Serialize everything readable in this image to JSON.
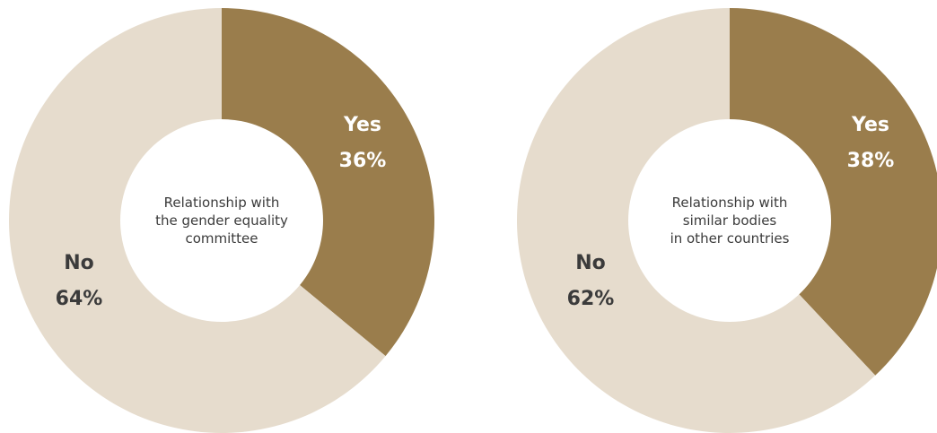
{
  "chart_data": [
    {
      "type": "pie",
      "variant": "donut",
      "center_label": [
        "Relationship with",
        "the gender equality",
        "committee"
      ],
      "slices": [
        {
          "label": "Yes",
          "value": 36,
          "value_label": "36%",
          "color": "#9a7d4c",
          "label_color": "#ffffff"
        },
        {
          "label": "No",
          "value": 64,
          "value_label": "64%",
          "color": "#e6dccd",
          "label_color": "#3b3b3b"
        }
      ]
    },
    {
      "type": "pie",
      "variant": "donut",
      "center_label": [
        "Relationship with",
        "similar bodies",
        "in other countries"
      ],
      "slices": [
        {
          "label": "Yes",
          "value": 38,
          "value_label": "38%",
          "color": "#9a7d4c",
          "label_color": "#ffffff"
        },
        {
          "label": "No",
          "value": 62,
          "value_label": "62%",
          "color": "#e6dccd",
          "label_color": "#3b3b3b"
        }
      ]
    }
  ]
}
